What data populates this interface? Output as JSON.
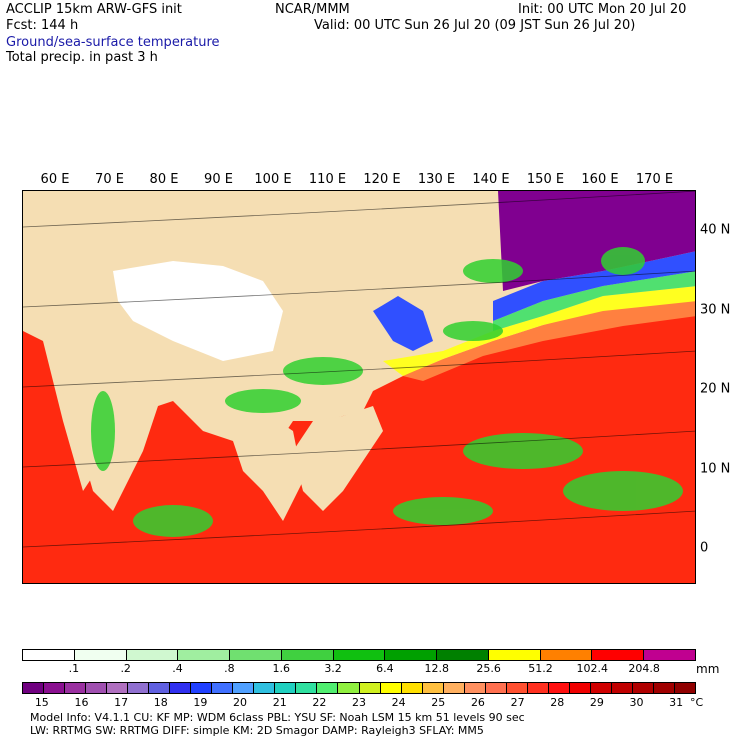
{
  "header": {
    "model": "ACCLIP 15km ARW-GFS init",
    "center": "NCAR/MMM",
    "init": "Init: 00 UTC Mon 20 Jul 20",
    "fcst": "Fcst:  144 h",
    "valid": "Valid: 00 UTC Sun 26 Jul 20 (09 JST Sun 26 Jul 20)",
    "field1": "Ground/sea-surface temperature",
    "field2": "Total precip. in past 3 h"
  },
  "map": {
    "lon_labels": [
      "60 E",
      "70 E",
      "80 E",
      "90 E",
      "100 E",
      "110 E",
      "120 E",
      "130 E",
      "140 E",
      "150 E",
      "160 E",
      "170 E"
    ],
    "lat_labels": [
      "40 N",
      "30 N",
      "20 N",
      "10 N",
      "0"
    ],
    "colors": {
      "land": "#f5deb3",
      "plateau": "#ffffff",
      "sea_warm": "#ff2a10",
      "sea_mid": "#ff8040",
      "sea_cool": "#ffff20",
      "sea_cold": "#3050ff",
      "sea_coldest": "#800090",
      "precip": "#30d030"
    }
  },
  "precip_scale": {
    "labels": [
      ".1",
      ".2",
      ".4",
      ".8",
      "1.6",
      "3.2",
      "6.4",
      "12.8",
      "25.6",
      "51.2",
      "102.4",
      "204.8"
    ],
    "unit": "mm",
    "colors": [
      "#ffffff",
      "#f0fff0",
      "#d0f8d0",
      "#a0eea0",
      "#70e070",
      "#40d040",
      "#10c010",
      "#00a000",
      "#008000",
      "#ffff00",
      "#ff8000",
      "#ff0000",
      "#c00090"
    ]
  },
  "temp_scale": {
    "labels": [
      "15",
      "16",
      "17",
      "18",
      "19",
      "20",
      "21",
      "22",
      "23",
      "24",
      "25",
      "26",
      "27",
      "28",
      "29",
      "30",
      "31"
    ],
    "unit": "°C",
    "colors": [
      "#700080",
      "#8a1090",
      "#9a30a0",
      "#a050b0",
      "#b070c0",
      "#9070d0",
      "#6060e0",
      "#3030f0",
      "#2040ff",
      "#4070ff",
      "#50a0ff",
      "#30c0e0",
      "#20d0c0",
      "#30e0a0",
      "#50ee70",
      "#90f040",
      "#d0f020",
      "#ffff00",
      "#ffe000",
      "#ffc040",
      "#ffb060",
      "#ff9060",
      "#ff7050",
      "#ff5030",
      "#ff3020",
      "#ff1010",
      "#f00000",
      "#d00000",
      "#c00000",
      "#b00000",
      "#a00000",
      "#900000"
    ]
  },
  "footer": {
    "line1": "Model Info: V4.1.1     CU: KF     MP: WDM 6class  PBL: YSU      SF: Noah LSM     15 km    51 levels    90 sec",
    "line2": "LW: RRTMG    SW: RRTMG   DIFF: simple KM: 2D Smagor DAMP: Rayleigh3  SFLAY: MM5"
  }
}
